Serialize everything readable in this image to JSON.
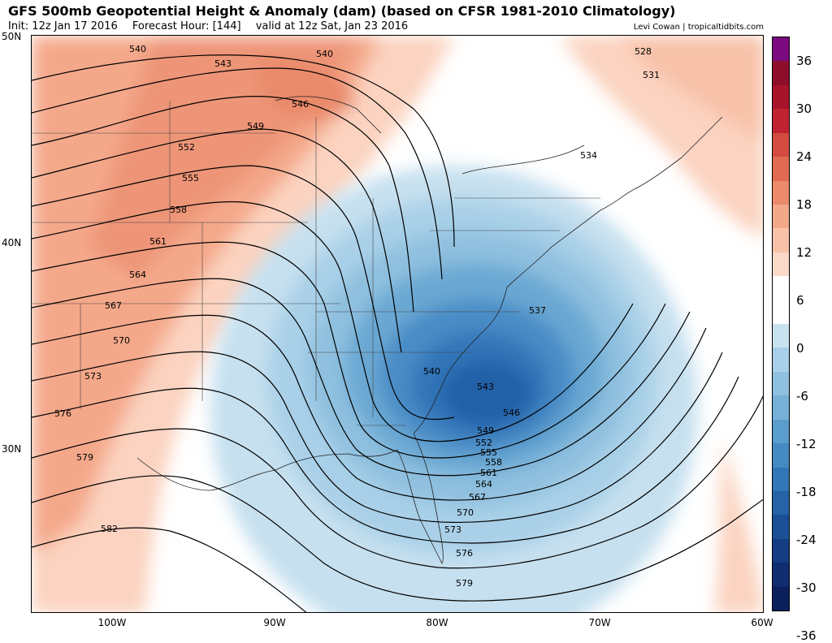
{
  "header": {
    "title": "GFS 500mb Geopotential Height & Anomaly (dam) (based on CFSR 1981-2010 Climatology)",
    "init": "Init: 12z Jan 17 2016",
    "forecast_hour": "Forecast Hour: [144]",
    "valid": "valid at 12z Sat, Jan 23 2016",
    "credit": "Levi Cowan | tropicaltidbits.com"
  },
  "map": {
    "lat_labels": [
      "50N",
      "40N",
      "30N"
    ],
    "lon_labels": [
      "100W",
      "90W",
      "80W",
      "70W",
      "60W"
    ],
    "colors": {
      "neg_light": "#c6e0ef",
      "neg_mid": "#8fc0df",
      "neg_deep": "#5b9dcc",
      "neg_core": "#2f6fb5",
      "neg_center": "#1d57a3",
      "pos_light": "#fbd3c0",
      "pos_mid": "#f4a88a",
      "pos_deep": "#e98a6b",
      "contour": "#000000"
    },
    "contour_labels": [
      "540",
      "543",
      "540",
      "528",
      "531",
      "546",
      "549",
      "552",
      "555",
      "558",
      "561",
      "564",
      "567",
      "570",
      "573",
      "576",
      "579",
      "582",
      "534",
      "537",
      "540",
      "543",
      "546",
      "549",
      "552",
      "555",
      "558",
      "561",
      "564",
      "567",
      "570",
      "573",
      "576",
      "579"
    ]
  },
  "colorbar": {
    "ticks": [
      "36",
      "30",
      "24",
      "18",
      "12",
      "6",
      "0",
      "-6",
      "-12",
      "-18",
      "-24",
      "-30",
      "-36"
    ],
    "colors": [
      "#7b0a7f",
      "#8e0d2a",
      "#a8142b",
      "#c0232f",
      "#d24a40",
      "#e06a52",
      "#ec8a6c",
      "#f4a88a",
      "#f8c1a8",
      "#fbd9c9",
      "#ffffff",
      "#ffffff",
      "#c9e2f0",
      "#a9d0e8",
      "#8fc0df",
      "#76b0d7",
      "#5b9dcc",
      "#458ac1",
      "#3276b5",
      "#2562a6",
      "#1b4f96",
      "#153d84",
      "#0f2d6f",
      "#0b1f5c"
    ]
  }
}
